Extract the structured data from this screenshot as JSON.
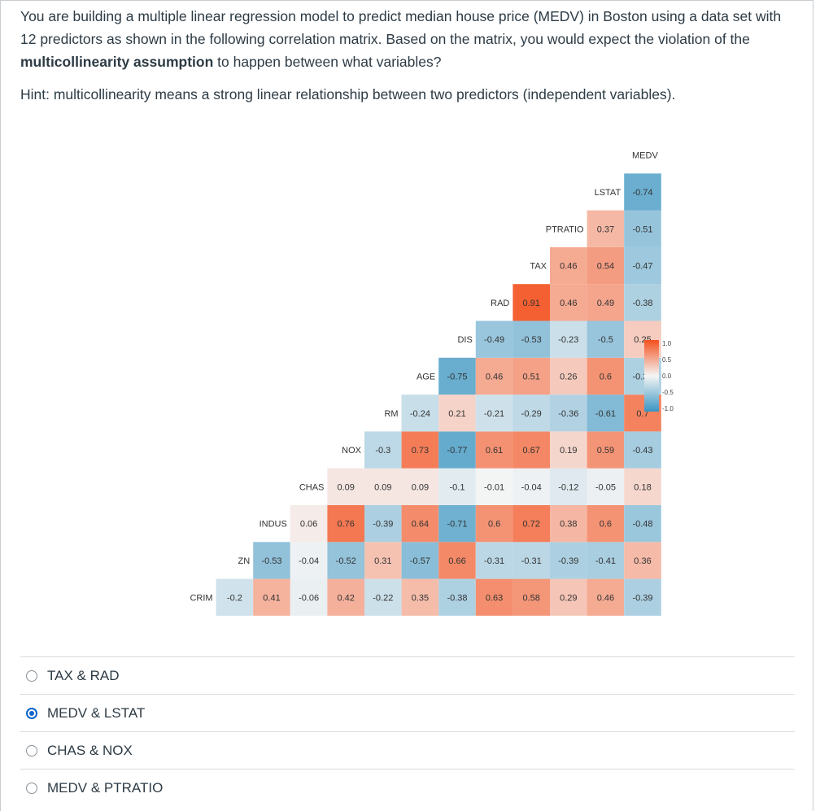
{
  "question": {
    "part1": "You are building a multiple linear regression model to predict median house price (MEDV) in Boston using a data set with 12 predictors as shown in the following correlation matrix. Based on the matrix, you would expect the violation of the ",
    "bold": "multicollinearity assumption",
    "part2": " to happen between what variables?",
    "hint": "Hint: multicollinearity means a strong linear relationship between two predictors (independent variables)."
  },
  "chart_data": {
    "type": "heatmap",
    "variables": [
      "CRIM",
      "ZN",
      "INDUS",
      "CHAS",
      "NOX",
      "RM",
      "AGE",
      "DIS",
      "RAD",
      "TAX",
      "PTRATIO",
      "LSTAT",
      "MEDV"
    ],
    "rows": [
      {
        "name": "CRIM",
        "values": [
          -0.2,
          0.41,
          -0.06,
          0.42,
          -0.22,
          0.35,
          -0.38,
          0.63,
          0.58,
          0.29,
          0.46,
          -0.39
        ]
      },
      {
        "name": "ZN",
        "values": [
          -0.53,
          -0.04,
          -0.52,
          0.31,
          -0.57,
          0.66,
          -0.31,
          -0.31,
          -0.39,
          -0.41,
          0.36
        ]
      },
      {
        "name": "INDUS",
        "values": [
          0.06,
          0.76,
          -0.39,
          0.64,
          -0.71,
          0.6,
          0.72,
          0.38,
          0.6,
          -0.48
        ]
      },
      {
        "name": "CHAS",
        "values": [
          0.09,
          0.09,
          0.09,
          -0.1,
          -0.01,
          -0.04,
          -0.12,
          -0.05,
          0.18
        ]
      },
      {
        "name": "NOX",
        "values": [
          -0.3,
          0.73,
          -0.77,
          0.61,
          0.67,
          0.19,
          0.59,
          -0.43
        ]
      },
      {
        "name": "RM",
        "values": [
          -0.24,
          0.21,
          -0.21,
          -0.29,
          -0.36,
          -0.61,
          0.7
        ]
      },
      {
        "name": "AGE",
        "values": [
          -0.75,
          0.46,
          0.51,
          0.26,
          0.6,
          -0.38
        ]
      },
      {
        "name": "DIS",
        "values": [
          -0.49,
          -0.53,
          -0.23,
          -0.5,
          0.25
        ]
      },
      {
        "name": "RAD",
        "values": [
          0.91,
          0.46,
          0.49,
          -0.38
        ]
      },
      {
        "name": "TAX",
        "values": [
          0.46,
          0.54,
          -0.47
        ]
      },
      {
        "name": "PTRATIO",
        "values": [
          0.37,
          -0.51
        ]
      },
      {
        "name": "LSTAT",
        "values": [
          -0.74
        ]
      },
      {
        "name": "MEDV",
        "values": []
      }
    ],
    "color_scale": {
      "low": "#3a95c2",
      "mid": "#f5f5f5",
      "high": "#f4511e",
      "range": [
        -1,
        1
      ]
    },
    "legend": {
      "placement": "right",
      "ticks": [
        "1.0",
        "0.5",
        "0.0",
        "-0.5",
        "-1.0"
      ]
    }
  },
  "options": [
    {
      "label": "TAX & RAD",
      "checked": false
    },
    {
      "label": "MEDV & LSTAT",
      "checked": true
    },
    {
      "label": "CHAS & NOX",
      "checked": false
    },
    {
      "label": "MEDV & PTRATIO",
      "checked": false
    }
  ]
}
